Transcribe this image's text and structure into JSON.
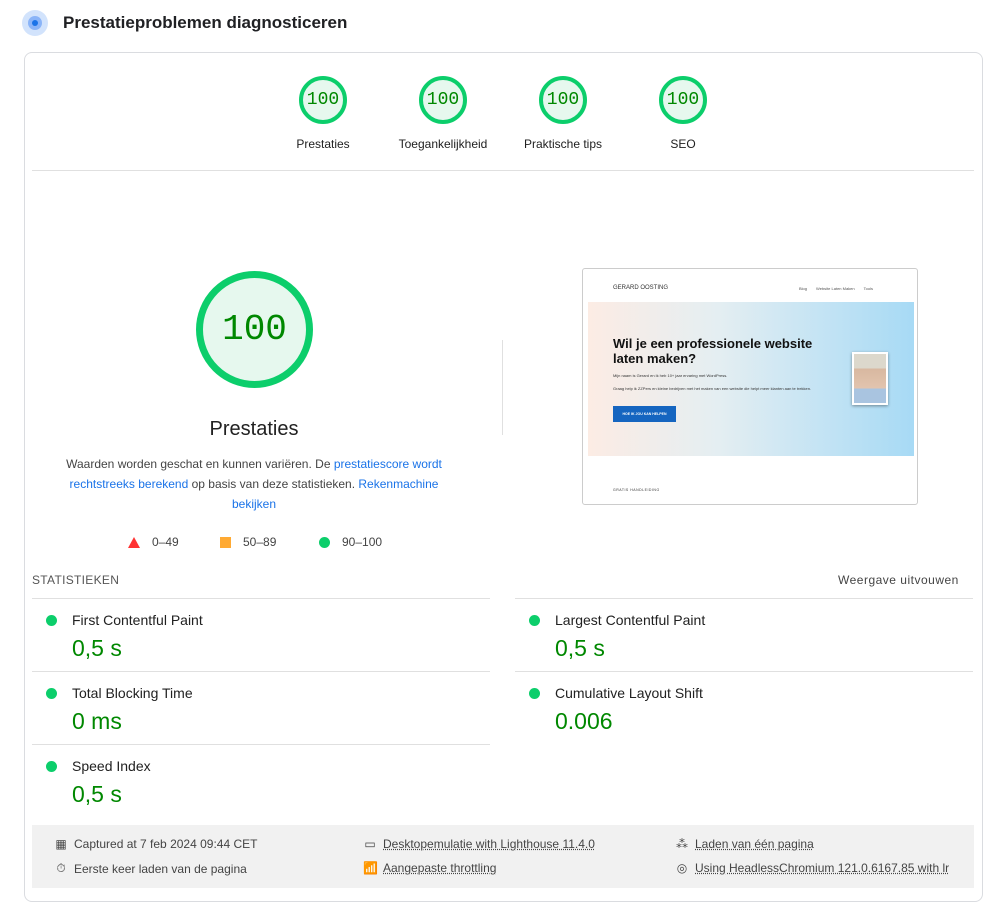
{
  "header": {
    "title": "Prestatieproblemen diagnosticeren",
    "icon": "lighthouse-icon"
  },
  "gauges": [
    {
      "score": "100",
      "label": "Prestaties"
    },
    {
      "score": "100",
      "label": "Toegankelijkheid"
    },
    {
      "score": "100",
      "label": "Praktische tips"
    },
    {
      "score": "100",
      "label": "SEO"
    }
  ],
  "main": {
    "score": "100",
    "title": "Prestaties",
    "desc_1": "Waarden worden geschat en kunnen variëren. De ",
    "link_1": "prestatiescore wordt rechtstreeks berekend",
    "desc_2": " op basis van deze statistieken. ",
    "link_2": "Rekenmachine bekijken"
  },
  "legend": [
    {
      "range": "0–49",
      "color": "#ff3333"
    },
    {
      "range": "50–89",
      "color": "#ffaa33"
    },
    {
      "range": "90–100",
      "color": "#0cce6b"
    }
  ],
  "screenshot": {
    "site": "GERARD OOSTING",
    "nav": [
      "Blog",
      "Website Laten Maken",
      "Tools"
    ],
    "headline": "Wil je een professionele website laten maken?",
    "p1": "Mijn naam is Gerard en ik heb 10+ jaar ervaring met WordPress.",
    "p2": "Graag help ik ZZPers en kleine bedrijven met het maken van een website die helpt meer klanten aan te trekken.",
    "cta": "HOE IK JOU KAN HELPEN",
    "footer": "GRATIS HANDLEIDING"
  },
  "stats": {
    "heading": "STATISTIEKEN",
    "expand": "Weergave uitvouwen",
    "metrics": [
      {
        "label": "First Contentful Paint",
        "value": "0,5 s"
      },
      {
        "label": "Largest Contentful Paint",
        "value": "0,5 s"
      },
      {
        "label": "Total Blocking Time",
        "value": "0 ms"
      },
      {
        "label": "Cumulative Layout Shift",
        "value": "0.006"
      },
      {
        "label": "Speed Index",
        "value": "0,5 s"
      }
    ]
  },
  "footer": {
    "captured": "Captured at 7 feb 2024 09:44 CET",
    "emulation": "Desktopemulatie with Lighthouse 11.4.0",
    "load": "Laden van één pagina",
    "first_load": "Eerste keer laden van de pagina",
    "throttling": "Aangepaste throttling",
    "browser": "Using HeadlessChromium 121.0.6167.85 with lr"
  },
  "colors": {
    "pass": "#0cce6b",
    "pass_text": "#008800",
    "link": "#1a73e8"
  }
}
